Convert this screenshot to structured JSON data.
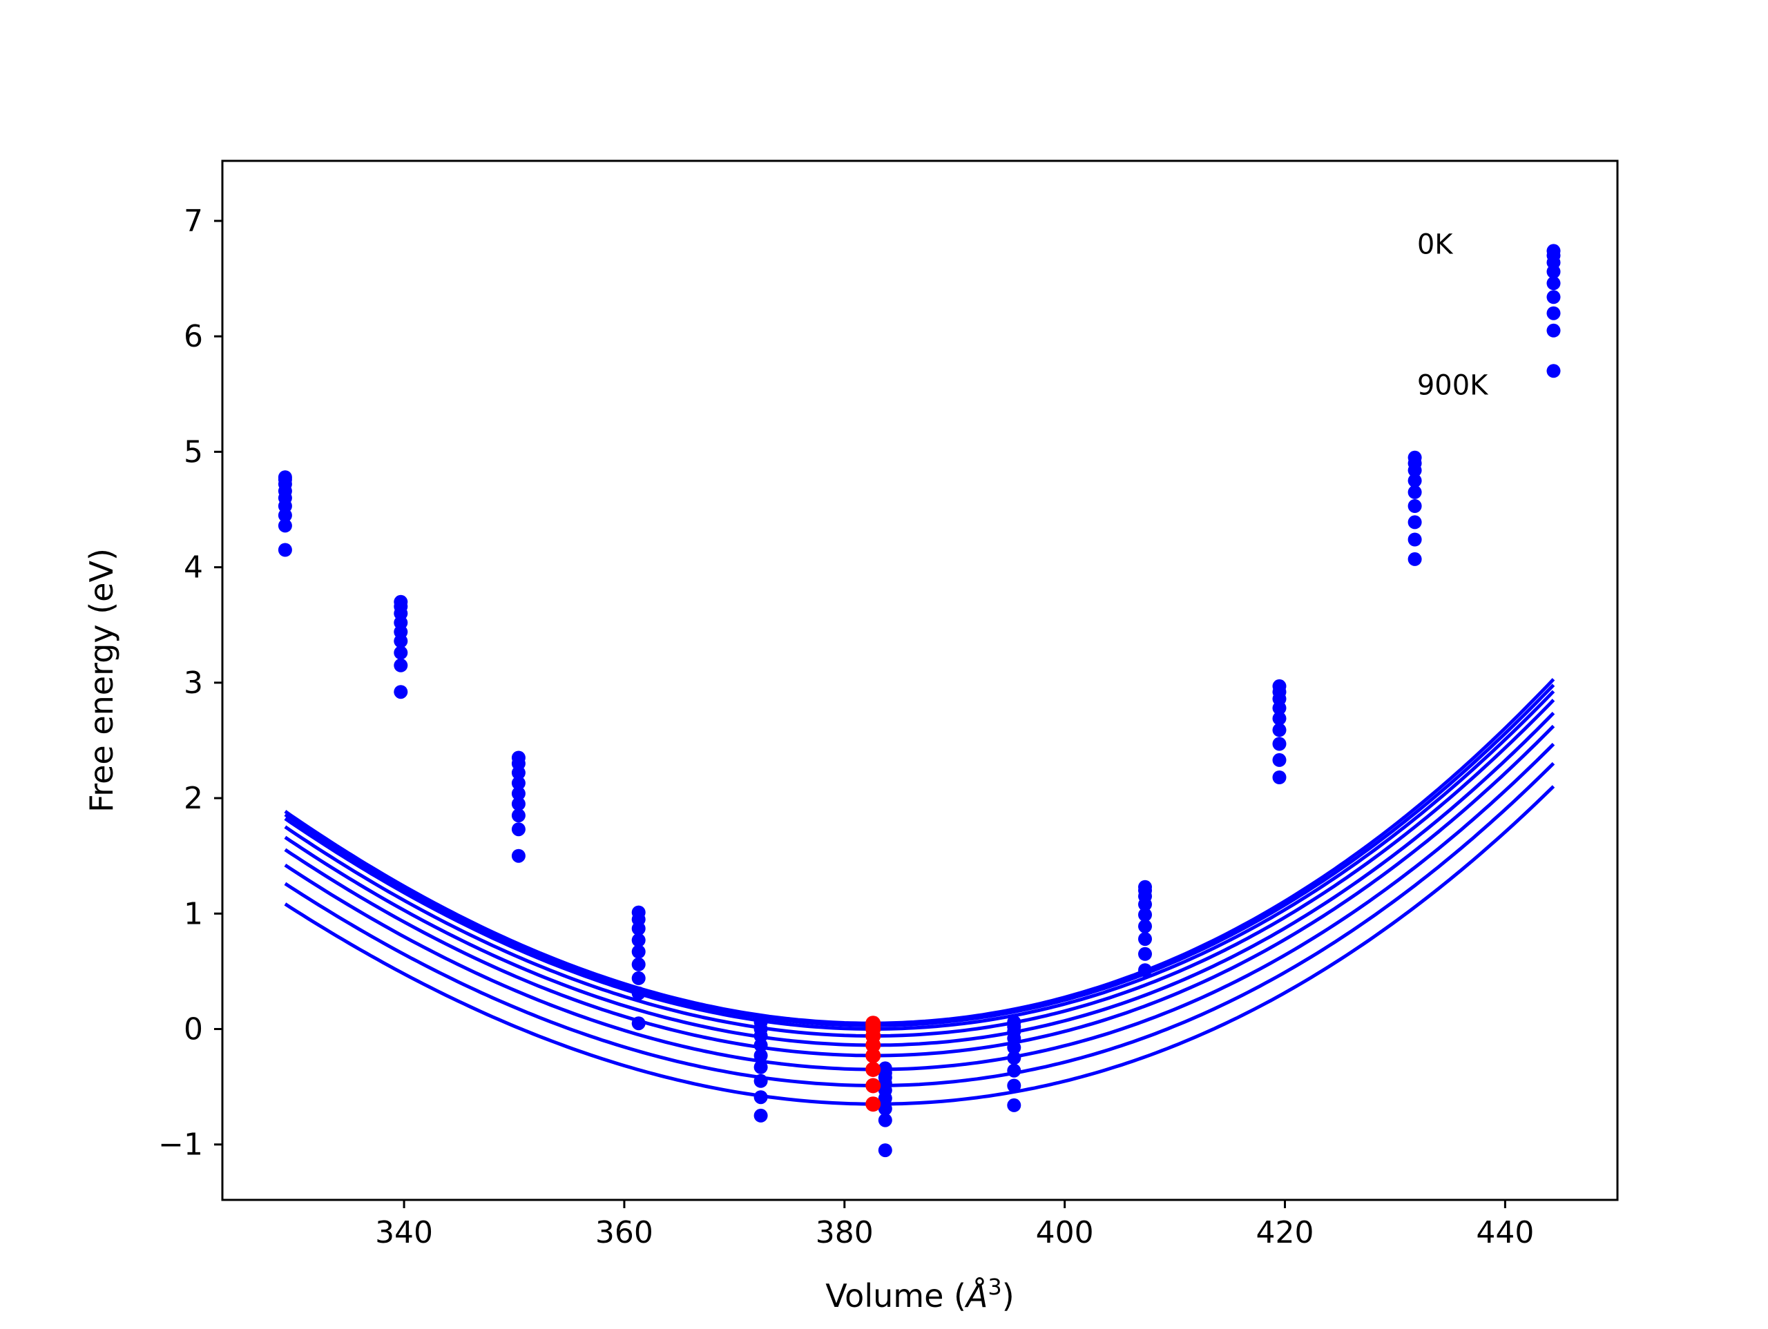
{
  "chart_data": {
    "type": "scatter",
    "title": "",
    "xlabel": "Volume (",
    "xlabel_symbol": "Å",
    "xlabel_exp": "3",
    "xlabel_close": ")",
    "ylabel": "Free energy (eV)",
    "xlim": [
      323.5,
      450.2
    ],
    "ylim": [
      -1.48,
      7.52
    ],
    "x_ticks": [
      340,
      360,
      380,
      400,
      420,
      440
    ],
    "y_ticks": [
      -1,
      0,
      1,
      2,
      3,
      4,
      5,
      6,
      7
    ],
    "y_tick_labels": [
      "−1",
      "0",
      "1",
      "2",
      "3",
      "4",
      "5",
      "6",
      "7"
    ],
    "grid": false,
    "legend": "none",
    "colors": {
      "series": "#0000ff",
      "minimum": "#ff0000"
    },
    "annotations": [
      {
        "text": "0K",
        "x": 432.0,
        "y": 6.8
      },
      {
        "text": "900K",
        "x": 432.0,
        "y": 5.58
      }
    ],
    "volumes": [
      329.2,
      339.7,
      350.4,
      361.3,
      372.4,
      383.7,
      395.4,
      407.3,
      419.5,
      431.8,
      444.4
    ],
    "series": [
      {
        "values": [
          4.78,
          3.7,
          2.35,
          1.01,
          0.06,
          -0.34,
          0.06,
          1.23,
          2.97,
          4.95,
          6.74
        ],
        "fit": {
          "e0": 0.05,
          "v0": 382.4,
          "a": 0.000707,
          "c": 1.1e-06,
          "vmin": 329.2,
          "vmax": 444.4
        }
      },
      {
        "values": [
          4.76,
          3.66,
          2.3,
          0.95,
          0.0,
          -0.38,
          0.02,
          1.2,
          2.92,
          4.9,
          6.7
        ],
        "fit": {
          "e0": 0.03,
          "v0": 382.5,
          "a": 0.000702,
          "c": 1.1e-06,
          "vmin": 329.2,
          "vmax": 444.4
        }
      },
      {
        "values": [
          4.72,
          3.6,
          2.22,
          0.87,
          -0.06,
          -0.42,
          -0.02,
          1.15,
          2.86,
          4.84,
          6.64
        ],
        "fit": {
          "e0": 0.0,
          "v0": 382.6,
          "a": 0.000698,
          "c": 1.1e-06,
          "vmin": 329.2,
          "vmax": 444.4
        }
      },
      {
        "values": [
          4.66,
          3.52,
          2.13,
          0.77,
          -0.14,
          -0.47,
          -0.08,
          1.08,
          2.78,
          4.75,
          6.56
        ],
        "fit": {
          "e0": -0.06,
          "v0": 382.6,
          "a": 0.000694,
          "c": 1.1e-06,
          "vmin": 329.2,
          "vmax": 444.4
        }
      },
      {
        "values": [
          4.6,
          3.44,
          2.04,
          0.67,
          -0.23,
          -0.53,
          -0.16,
          0.99,
          2.69,
          4.65,
          6.46
        ],
        "fit": {
          "e0": -0.14,
          "v0": 382.7,
          "a": 0.000688,
          "c": 1.1e-06,
          "vmin": 329.2,
          "vmax": 444.4
        }
      },
      {
        "values": [
          4.53,
          3.36,
          1.95,
          0.56,
          -0.33,
          -0.6,
          -0.25,
          0.89,
          2.59,
          4.53,
          6.34
        ],
        "fit": {
          "e0": -0.23,
          "v0": 382.7,
          "a": 0.000682,
          "c": 1.1e-06,
          "vmin": 329.2,
          "vmax": 444.4
        }
      },
      {
        "values": [
          4.45,
          3.26,
          1.85,
          0.44,
          -0.45,
          -0.69,
          -0.36,
          0.78,
          2.47,
          4.39,
          6.2
        ],
        "fit": {
          "e0": -0.35,
          "v0": 382.8,
          "a": 0.000675,
          "c": 1.1e-06,
          "vmin": 329.2,
          "vmax": 444.4
        }
      },
      {
        "values": [
          4.36,
          3.15,
          1.73,
          0.31,
          -0.59,
          -0.79,
          -0.49,
          0.65,
          2.33,
          4.24,
          6.05
        ],
        "fit": {
          "e0": -0.49,
          "v0": 382.8,
          "a": 0.000668,
          "c": 1.1e-06,
          "vmin": 329.2,
          "vmax": 444.4
        }
      },
      {
        "values": [
          4.15,
          2.92,
          1.5,
          0.05,
          -0.75,
          -1.05,
          -0.66,
          0.51,
          2.18,
          4.07,
          5.7
        ],
        "fit": {
          "e0": -0.65,
          "v0": 382.9,
          "a": 0.00066,
          "c": 1.1e-06,
          "vmin": 329.2,
          "vmax": 444.4
        }
      }
    ],
    "minima": {
      "x": 382.6,
      "values": [
        0.05,
        0.03,
        0.0,
        -0.06,
        -0.14,
        -0.23,
        -0.35,
        -0.49,
        -0.65
      ]
    }
  }
}
